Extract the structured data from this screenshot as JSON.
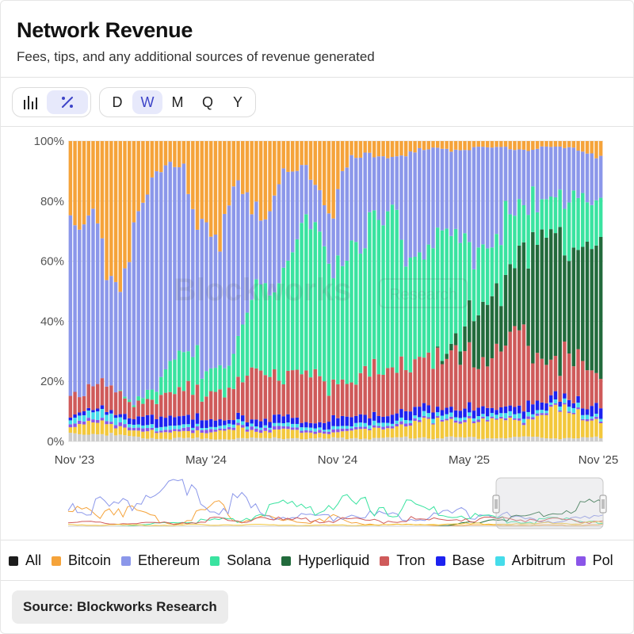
{
  "header": {
    "title": "Network Revenue",
    "subtitle": "Fees, tips, and any additional sources of revenue generated"
  },
  "toolbar": {
    "chart_type_buttons": [
      {
        "icon": "bar-chart-icon",
        "active": false
      },
      {
        "icon": "percent-icon",
        "active": true
      }
    ],
    "timeframes": [
      {
        "label": "D",
        "active": false
      },
      {
        "label": "W",
        "active": true
      },
      {
        "label": "M",
        "active": false
      },
      {
        "label": "Q",
        "active": false
      },
      {
        "label": "Y",
        "active": false
      }
    ]
  },
  "watermark": {
    "brand": "Blockworks",
    "badge": "Research"
  },
  "chart_data": {
    "type": "bar",
    "stacked": "percent",
    "x_tick_labels": [
      "Nov '23",
      "May '24",
      "Nov '24",
      "May '25",
      "Nov '25"
    ],
    "y_tick_labels": [
      "0%",
      "20%",
      "40%",
      "60%",
      "80%",
      "100%"
    ],
    "ylim": [
      0,
      100
    ],
    "grid": true,
    "legend_position": "bottom",
    "series_colors": {
      "Bitcoin": "#f5a33a",
      "Ethereum": "#8b97ea",
      "Solana": "#3ae3a0",
      "Hyperliquid": "#226b3c",
      "Tron": "#cf5a5a",
      "Base": "#1d22f0",
      "Arbitrum": "#45dcea",
      "Polygon": "#8a55e8",
      "Stablecoin chains": "#f3c83c",
      "Other": "#cccccc"
    },
    "series_keypoints_pct": {
      "Bitcoin": [
        [
          0,
          30
        ],
        [
          6,
          28
        ],
        [
          10,
          42
        ],
        [
          14,
          30
        ],
        [
          18,
          18
        ],
        [
          21,
          10
        ],
        [
          25,
          6
        ],
        [
          28,
          28
        ],
        [
          33,
          45
        ],
        [
          37,
          10
        ],
        [
          42,
          25
        ],
        [
          47,
          12
        ],
        [
          52,
          8
        ],
        [
          57,
          22
        ],
        [
          62,
          6
        ],
        [
          68,
          4
        ],
        [
          75,
          3
        ],
        [
          82,
          2
        ],
        [
          87,
          2
        ],
        [
          95,
          2
        ],
        [
          100,
          2
        ],
        [
          106,
          2
        ],
        [
          112,
          2
        ],
        [
          117,
          4
        ]
      ],
      "Ethereum": [
        [
          0,
          50
        ],
        [
          6,
          45
        ],
        [
          10,
          40
        ],
        [
          14,
          55
        ],
        [
          18,
          70
        ],
        [
          21,
          75
        ],
        [
          25,
          72
        ],
        [
          28,
          55
        ],
        [
          33,
          38
        ],
        [
          37,
          60
        ],
        [
          42,
          25
        ],
        [
          47,
          22
        ],
        [
          52,
          18
        ],
        [
          57,
          20
        ],
        [
          62,
          25
        ],
        [
          68,
          22
        ],
        [
          75,
          22
        ],
        [
          82,
          25
        ],
        [
          87,
          28
        ],
        [
          95,
          22
        ],
        [
          100,
          14
        ],
        [
          106,
          12
        ],
        [
          112,
          14
        ],
        [
          117,
          18
        ]
      ],
      "Solana": [
        [
          0,
          0
        ],
        [
          10,
          0
        ],
        [
          14,
          1
        ],
        [
          18,
          4
        ],
        [
          21,
          8
        ],
        [
          25,
          10
        ],
        [
          28,
          10
        ],
        [
          33,
          12
        ],
        [
          37,
          12
        ],
        [
          42,
          28
        ],
        [
          47,
          38
        ],
        [
          52,
          42
        ],
        [
          57,
          45
        ],
        [
          62,
          48
        ],
        [
          68,
          40
        ],
        [
          75,
          40
        ],
        [
          82,
          28
        ],
        [
          87,
          22
        ],
        [
          95,
          15
        ],
        [
          100,
          8
        ],
        [
          106,
          14
        ],
        [
          112,
          12
        ],
        [
          117,
          10
        ]
      ],
      "Hyperliquid": [
        [
          0,
          0
        ],
        [
          80,
          0
        ],
        [
          84,
          2
        ],
        [
          88,
          8
        ],
        [
          92,
          14
        ],
        [
          96,
          20
        ],
        [
          100,
          22
        ],
        [
          104,
          30
        ],
        [
          108,
          35
        ],
        [
          112,
          38
        ],
        [
          117,
          40
        ]
      ],
      "Tron": [
        [
          0,
          8
        ],
        [
          6,
          7
        ],
        [
          10,
          6
        ],
        [
          14,
          6
        ],
        [
          18,
          6
        ],
        [
          21,
          7
        ],
        [
          25,
          8
        ],
        [
          28,
          10
        ],
        [
          33,
          14
        ],
        [
          37,
          8
        ],
        [
          42,
          20
        ],
        [
          47,
          12
        ],
        [
          52,
          14
        ],
        [
          57,
          14
        ],
        [
          62,
          12
        ],
        [
          68,
          12
        ],
        [
          75,
          14
        ],
        [
          82,
          12
        ],
        [
          87,
          16
        ],
        [
          95,
          14
        ],
        [
          100,
          16
        ],
        [
          106,
          12
        ],
        [
          112,
          10
        ],
        [
          117,
          12
        ]
      ],
      "Base": [
        [
          0,
          1
        ],
        [
          10,
          1
        ],
        [
          14,
          2
        ],
        [
          20,
          4
        ],
        [
          25,
          3
        ],
        [
          33,
          2
        ],
        [
          42,
          2
        ],
        [
          52,
          2
        ],
        [
          62,
          3
        ],
        [
          72,
          2
        ],
        [
          82,
          2
        ],
        [
          92,
          2
        ],
        [
          102,
          2
        ],
        [
          112,
          2
        ],
        [
          117,
          3
        ]
      ],
      "Arbitrum": [
        [
          0,
          2
        ],
        [
          10,
          2
        ],
        [
          20,
          1
        ],
        [
          30,
          1
        ],
        [
          50,
          1
        ],
        [
          70,
          1
        ],
        [
          90,
          1
        ],
        [
          117,
          1
        ]
      ],
      "Polygon": [
        [
          0,
          1
        ],
        [
          40,
          1
        ],
        [
          80,
          0.5
        ],
        [
          117,
          0.5
        ]
      ],
      "Stablecoin chains": [
        [
          0,
          3
        ],
        [
          10,
          3
        ],
        [
          20,
          2
        ],
        [
          30,
          3
        ],
        [
          40,
          3
        ],
        [
          50,
          2
        ],
        [
          60,
          2
        ],
        [
          70,
          3
        ],
        [
          80,
          4
        ],
        [
          90,
          5
        ],
        [
          100,
          4
        ],
        [
          106,
          8
        ],
        [
          112,
          6
        ],
        [
          117,
          7
        ]
      ],
      "Other": [
        [
          0,
          3
        ],
        [
          10,
          2
        ],
        [
          20,
          1
        ],
        [
          30,
          1
        ],
        [
          117,
          1
        ]
      ]
    },
    "bar_count": 118
  },
  "legend": {
    "items": [
      {
        "label": "All",
        "color": "#1c1c1c"
      },
      {
        "label": "Bitcoin",
        "color": "#f5a33a"
      },
      {
        "label": "Ethereum",
        "color": "#8b97ea"
      },
      {
        "label": "Solana",
        "color": "#3ae3a0"
      },
      {
        "label": "Hyperliquid",
        "color": "#226b3c"
      },
      {
        "label": "Tron",
        "color": "#cf5a5a"
      },
      {
        "label": "Base",
        "color": "#1d22f0"
      },
      {
        "label": "Arbitrum",
        "color": "#45dcea"
      },
      {
        "label": "Pol",
        "color": "#8a55e8"
      }
    ]
  },
  "footer": {
    "source": "Source: Blockworks Research"
  }
}
